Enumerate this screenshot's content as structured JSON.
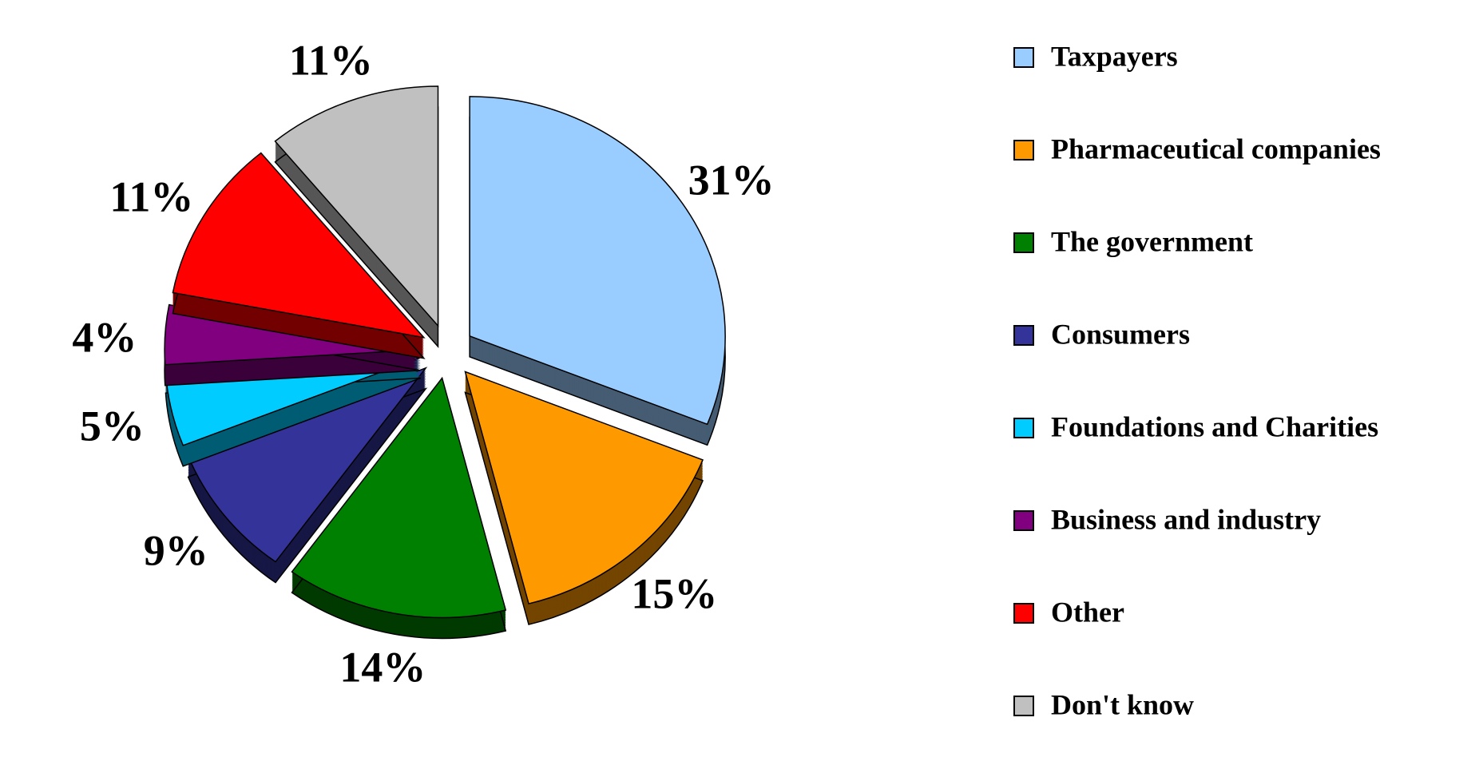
{
  "chart_data": {
    "type": "pie",
    "categories": [
      "Taxpayers",
      "Pharmaceutical companies",
      "The government",
      "Consumers",
      "Foundations and Charities",
      "Business and industry",
      "Other",
      "Don't know"
    ],
    "values": [
      31,
      15,
      14,
      9,
      5,
      4,
      11,
      11
    ],
    "value_labels": [
      "31%",
      "15%",
      "14%",
      "9%",
      "5%",
      "4%",
      "11%",
      "11%"
    ],
    "colors": [
      "#99ccff",
      "#ff9900",
      "#008000",
      "#333399",
      "#00ccff",
      "#800080",
      "#ff0000",
      "#c0c0c0"
    ],
    "legend": "right"
  }
}
